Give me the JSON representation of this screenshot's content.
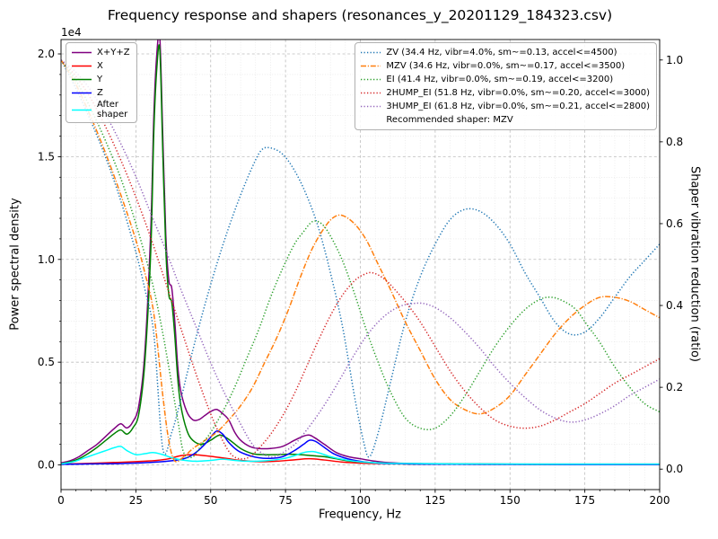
{
  "chart_data": {
    "type": "line",
    "title": "Frequency response and shapers (resonances_y_20201129_184323.csv)",
    "xlabel": "Frequency, Hz",
    "ylabel_left": "Power spectral density",
    "ylabel_right": "Shaper vibration reduction (ratio)",
    "y_left_offset_label": "1e4",
    "y_left_units": "1e4",
    "xlim": [
      0,
      200
    ],
    "ylim_left": [
      -0.12,
      2.07
    ],
    "ylim_right": [
      -0.05,
      1.05
    ],
    "x_ticks": [
      0,
      25,
      50,
      75,
      100,
      125,
      150,
      175,
      200
    ],
    "x_tick_labels": [
      "0",
      "25",
      "50",
      "75",
      "100",
      "125",
      "150",
      "175",
      "200"
    ],
    "x_minor_step": 5,
    "y_left_ticks": [
      0.0,
      0.5,
      1.0,
      1.5,
      2.0
    ],
    "y_left_tick_labels": [
      "0.0",
      "0.5",
      "1.0",
      "1.5",
      "2.0"
    ],
    "y_left_minor_step": 0.1,
    "y_right_ticks": [
      0.0,
      0.2,
      0.4,
      0.6,
      0.8,
      1.0
    ],
    "y_right_tick_labels": [
      "0.0",
      "0.2",
      "0.4",
      "0.6",
      "0.8",
      "1.0"
    ],
    "grid": "major+minor",
    "recommended_shaper": "MZV",
    "legend_right_footer": "Recommended shaper: MZV",
    "psd_series": [
      {
        "name": "X+Y+Z",
        "legend": "X+Y+Z",
        "color": "#800080",
        "style": "solid",
        "x": [
          0,
          3,
          6,
          9,
          12,
          15,
          18,
          20,
          22,
          24,
          26,
          28,
          30,
          31,
          32,
          33,
          34,
          35,
          36,
          37,
          38,
          39,
          40,
          42,
          44,
          46,
          48,
          50,
          52,
          54,
          56,
          58,
          60,
          63,
          66,
          70,
          74,
          78,
          81,
          83,
          85,
          88,
          92,
          96,
          100,
          104,
          108,
          115,
          125,
          140,
          160,
          180,
          200
        ],
        "y": [
          0.01,
          0.02,
          0.04,
          0.07,
          0.1,
          0.14,
          0.18,
          0.2,
          0.18,
          0.21,
          0.29,
          0.55,
          1.15,
          1.7,
          2.0,
          2.08,
          1.6,
          1.12,
          0.9,
          0.86,
          0.7,
          0.48,
          0.36,
          0.26,
          0.22,
          0.22,
          0.24,
          0.26,
          0.27,
          0.25,
          0.22,
          0.16,
          0.12,
          0.09,
          0.08,
          0.08,
          0.09,
          0.12,
          0.14,
          0.145,
          0.13,
          0.1,
          0.06,
          0.04,
          0.03,
          0.02,
          0.013,
          0.008,
          0.006,
          0.005,
          0.004,
          0.004,
          0.004
        ]
      },
      {
        "name": "X",
        "legend": "X",
        "color": "#ff0000",
        "style": "solid",
        "x": [
          0,
          10,
          20,
          28,
          32,
          36,
          40,
          44,
          48,
          52,
          56,
          60,
          66,
          72,
          78,
          83,
          88,
          94,
          100,
          110,
          120,
          140,
          170,
          200
        ],
        "y": [
          0.004,
          0.008,
          0.013,
          0.018,
          0.022,
          0.03,
          0.045,
          0.05,
          0.045,
          0.038,
          0.03,
          0.022,
          0.016,
          0.018,
          0.025,
          0.03,
          0.024,
          0.014,
          0.009,
          0.006,
          0.004,
          0.003,
          0.003,
          0.002
        ]
      },
      {
        "name": "Y",
        "legend": "Y",
        "color": "#008000",
        "style": "solid",
        "x": [
          0,
          3,
          6,
          9,
          12,
          15,
          18,
          20,
          22,
          24,
          26,
          28,
          30,
          31,
          32,
          33,
          34,
          35,
          36,
          37,
          38,
          39,
          40,
          42,
          44,
          47,
          50,
          53,
          56,
          60,
          64,
          68,
          72,
          76,
          80,
          84,
          88,
          92,
          96,
          100,
          105,
          110,
          120,
          140,
          160,
          180,
          200
        ],
        "y": [
          0.005,
          0.015,
          0.03,
          0.055,
          0.085,
          0.12,
          0.155,
          0.17,
          0.15,
          0.18,
          0.25,
          0.5,
          1.05,
          1.62,
          1.93,
          2.02,
          1.52,
          1.05,
          0.83,
          0.79,
          0.63,
          0.42,
          0.29,
          0.17,
          0.12,
          0.1,
          0.12,
          0.145,
          0.125,
          0.08,
          0.055,
          0.05,
          0.05,
          0.052,
          0.05,
          0.045,
          0.04,
          0.03,
          0.02,
          0.015,
          0.01,
          0.007,
          0.005,
          0.004,
          0.003,
          0.003,
          0.003
        ]
      },
      {
        "name": "Z",
        "legend": "Z",
        "color": "#0000ff",
        "style": "solid",
        "x": [
          0,
          10,
          20,
          30,
          38,
          42,
          45,
          48,
          50,
          52,
          54,
          56,
          59,
          62,
          66,
          70,
          74,
          78,
          81,
          83,
          85,
          88,
          91,
          95,
          99,
          103,
          107,
          112,
          120,
          140,
          170,
          200
        ],
        "y": [
          0.003,
          0.005,
          0.007,
          0.012,
          0.022,
          0.035,
          0.06,
          0.1,
          0.135,
          0.165,
          0.15,
          0.11,
          0.07,
          0.05,
          0.035,
          0.032,
          0.04,
          0.07,
          0.1,
          0.12,
          0.115,
          0.085,
          0.055,
          0.033,
          0.02,
          0.012,
          0.008,
          0.006,
          0.004,
          0.003,
          0.002,
          0.002
        ]
      },
      {
        "name": "After shaper",
        "legend": "After\nshaper",
        "color": "#00ffff",
        "style": "solid",
        "x": [
          0,
          4,
          8,
          12,
          15,
          18,
          20,
          22,
          25,
          28,
          31,
          34,
          37,
          40,
          45,
          50,
          54,
          58,
          62,
          68,
          74,
          78,
          81,
          84,
          87,
          90,
          95,
          100,
          110,
          130,
          160,
          200
        ],
        "y": [
          0.005,
          0.015,
          0.035,
          0.055,
          0.07,
          0.085,
          0.09,
          0.07,
          0.05,
          0.055,
          0.06,
          0.05,
          0.035,
          0.025,
          0.018,
          0.022,
          0.028,
          0.022,
          0.018,
          0.02,
          0.03,
          0.045,
          0.06,
          0.065,
          0.055,
          0.04,
          0.025,
          0.015,
          0.008,
          0.005,
          0.004,
          0.004
        ]
      }
    ],
    "shaper_series": [
      {
        "name": "ZV",
        "label": "ZV (34.4 Hz, vibr=4.0%, sm~=0.13, accel<=4500)",
        "color": "#1f77b4",
        "style": "dotted",
        "x": [
          0,
          5,
          10,
          15,
          20,
          25,
          28,
          31,
          34,
          37,
          40,
          44,
          48,
          52,
          56,
          60,
          64,
          67,
          70,
          74,
          78,
          82,
          86,
          90,
          94,
          98,
          101,
          103,
          106,
          110,
          115,
          120,
          125,
          130,
          135,
          140,
          145,
          150,
          155,
          160,
          165,
          170,
          175,
          180,
          185,
          190,
          195,
          200
        ],
        "y": [
          1.0,
          0.93,
          0.85,
          0.76,
          0.655,
          0.53,
          0.44,
          0.33,
          0.05,
          0.09,
          0.17,
          0.29,
          0.4,
          0.5,
          0.59,
          0.67,
          0.74,
          0.78,
          0.785,
          0.77,
          0.73,
          0.67,
          0.59,
          0.48,
          0.35,
          0.18,
          0.07,
          0.03,
          0.09,
          0.21,
          0.36,
          0.47,
          0.55,
          0.61,
          0.635,
          0.63,
          0.6,
          0.55,
          0.48,
          0.42,
          0.36,
          0.33,
          0.335,
          0.37,
          0.42,
          0.47,
          0.51,
          0.55
        ]
      },
      {
        "name": "MZV",
        "label": "MZV (34.6 Hz, vibr=0.0%, sm~=0.17, accel<=3500)",
        "color": "#ff7f0e",
        "style": "dashdot",
        "x": [
          0,
          5,
          10,
          15,
          20,
          25,
          28,
          31,
          34,
          36,
          38,
          41,
          44,
          48,
          52,
          56,
          60,
          64,
          68,
          72,
          76,
          80,
          84,
          88,
          91,
          94,
          98,
          102,
          106,
          110,
          115,
          120,
          125,
          130,
          135,
          140,
          145,
          150,
          155,
          160,
          165,
          170,
          175,
          180,
          185,
          190,
          195,
          200
        ],
        "y": [
          1.0,
          0.94,
          0.86,
          0.77,
          0.67,
          0.56,
          0.48,
          0.38,
          0.18,
          0.07,
          0.02,
          0.03,
          0.05,
          0.07,
          0.09,
          0.12,
          0.155,
          0.2,
          0.26,
          0.32,
          0.39,
          0.47,
          0.54,
          0.59,
          0.615,
          0.62,
          0.6,
          0.56,
          0.5,
          0.44,
          0.36,
          0.29,
          0.22,
          0.17,
          0.145,
          0.135,
          0.15,
          0.18,
          0.23,
          0.28,
          0.33,
          0.37,
          0.4,
          0.42,
          0.42,
          0.41,
          0.39,
          0.37
        ]
      },
      {
        "name": "EI",
        "label": "EI (41.4 Hz, vibr=0.0%, sm~=0.19, accel<=3200)",
        "color": "#2ca02c",
        "style": "dotted",
        "x": [
          0,
          5,
          10,
          15,
          20,
          25,
          30,
          33,
          36,
          39,
          41,
          44,
          47,
          50,
          54,
          58,
          62,
          66,
          70,
          74,
          78,
          81,
          84,
          87,
          90,
          94,
          98,
          102,
          106,
          110,
          115,
          120,
          125,
          130,
          135,
          140,
          145,
          150,
          155,
          160,
          164,
          168,
          172,
          176,
          180,
          185,
          190,
          195,
          200
        ],
        "y": [
          1.0,
          0.95,
          0.88,
          0.8,
          0.71,
          0.6,
          0.47,
          0.37,
          0.25,
          0.12,
          0.04,
          0.03,
          0.06,
          0.09,
          0.14,
          0.2,
          0.27,
          0.34,
          0.42,
          0.49,
          0.55,
          0.58,
          0.605,
          0.6,
          0.57,
          0.51,
          0.43,
          0.34,
          0.26,
          0.19,
          0.125,
          0.1,
          0.1,
          0.13,
          0.18,
          0.24,
          0.3,
          0.35,
          0.39,
          0.415,
          0.42,
          0.41,
          0.39,
          0.35,
          0.31,
          0.25,
          0.2,
          0.16,
          0.14
        ]
      },
      {
        "name": "2HUMP_EI",
        "label": "2HUMP_EI (51.8 Hz, vibr=0.0%, sm~=0.20, accel<=3000)",
        "color": "#d62728",
        "style": "dotted",
        "x": [
          0,
          5,
          10,
          15,
          20,
          25,
          30,
          35,
          40,
          45,
          50,
          54,
          57,
          60,
          63,
          66,
          70,
          74,
          78,
          82,
          86,
          90,
          94,
          98,
          101,
          104,
          108,
          112,
          116,
          120,
          125,
          130,
          135,
          140,
          145,
          150,
          155,
          160,
          165,
          170,
          175,
          180,
          185,
          190,
          195,
          200
        ],
        "y": [
          1.0,
          0.96,
          0.905,
          0.835,
          0.755,
          0.665,
          0.565,
          0.455,
          0.345,
          0.235,
          0.135,
          0.07,
          0.035,
          0.025,
          0.03,
          0.05,
          0.085,
          0.13,
          0.185,
          0.25,
          0.315,
          0.375,
          0.425,
          0.46,
          0.475,
          0.48,
          0.465,
          0.435,
          0.4,
          0.36,
          0.3,
          0.24,
          0.19,
          0.15,
          0.12,
          0.105,
          0.1,
          0.105,
          0.12,
          0.14,
          0.16,
          0.185,
          0.21,
          0.23,
          0.25,
          0.27
        ]
      },
      {
        "name": "3HUMP_EI",
        "label": "3HUMP_EI (61.8 Hz, vibr=0.0%, sm~=0.21, accel<=2800)",
        "color": "#9467bd",
        "style": "dotted",
        "x": [
          0,
          5,
          10,
          15,
          20,
          25,
          30,
          35,
          40,
          45,
          50,
          55,
          60,
          64,
          68,
          71,
          74,
          78,
          82,
          86,
          90,
          94,
          98,
          102,
          106,
          110,
          114,
          118,
          121,
          125,
          130,
          135,
          140,
          145,
          150,
          155,
          160,
          165,
          170,
          175,
          180,
          185,
          190,
          195,
          200
        ],
        "y": [
          1.0,
          0.97,
          0.925,
          0.865,
          0.795,
          0.715,
          0.625,
          0.535,
          0.44,
          0.35,
          0.26,
          0.18,
          0.11,
          0.06,
          0.035,
          0.03,
          0.04,
          0.06,
          0.095,
          0.135,
          0.18,
          0.23,
          0.28,
          0.325,
          0.36,
          0.385,
          0.4,
          0.405,
          0.405,
          0.395,
          0.37,
          0.335,
          0.295,
          0.25,
          0.21,
          0.175,
          0.145,
          0.125,
          0.115,
          0.12,
          0.135,
          0.155,
          0.18,
          0.2,
          0.22
        ]
      }
    ]
  }
}
